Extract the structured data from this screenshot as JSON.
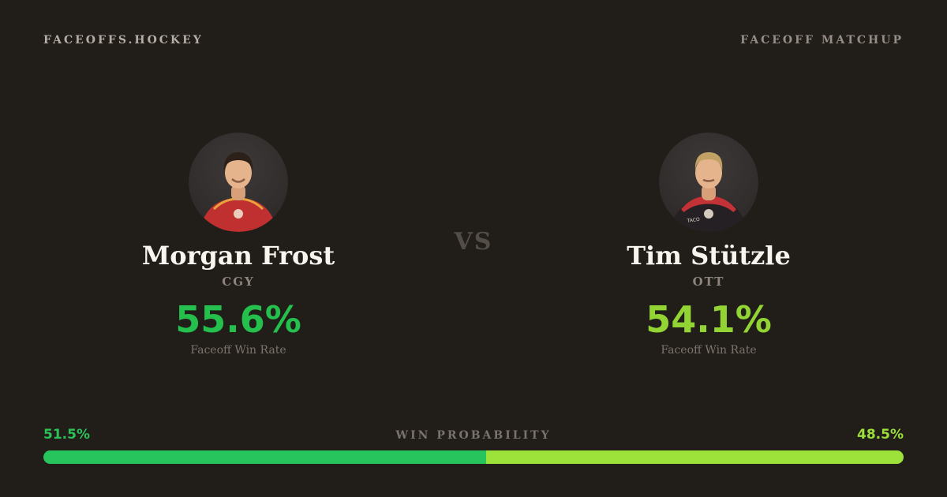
{
  "header": {
    "brand": "FACEOFFS.HOCKEY",
    "label": "FACEOFF MATCHUP"
  },
  "matchup": {
    "vs_label": "VS",
    "players": [
      {
        "name": "Morgan Frost",
        "team": "CGY",
        "win_rate": "55.6%",
        "stat_label": "Faceoff Win Rate",
        "accent": "#25bf4e",
        "jersey_color": "#c03030",
        "jersey_trim_color": "#e8a33d"
      },
      {
        "name": "Tim Stützle",
        "team": "OTT",
        "win_rate": "54.1%",
        "stat_label": "Faceoff Win Rate",
        "accent": "#92d434",
        "jersey_color": "#252023",
        "jersey_trim_color": "#c23237"
      }
    ]
  },
  "win_probability": {
    "label": "WIN PROBABILITY",
    "left_pct": "51.5%",
    "right_pct": "48.5%",
    "left_value": 51.5,
    "right_value": 48.5,
    "left_color": "#27c45e",
    "right_color": "#9ce23a",
    "left_text_color": "#2cc158",
    "right_text_color": "#9bdf3b"
  }
}
